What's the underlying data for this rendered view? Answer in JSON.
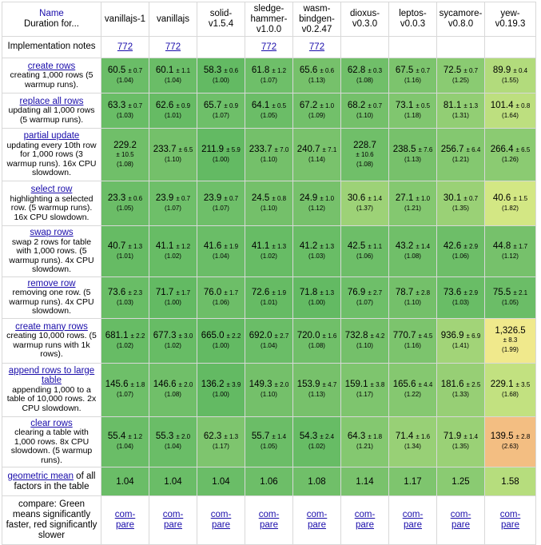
{
  "header": {
    "first_title": "Name",
    "first_sub": "Duration for...",
    "frameworks": [
      {
        "name": "vanillajs-1",
        "name2": ""
      },
      {
        "name": "vanillajs",
        "name2": ""
      },
      {
        "name": "solid-",
        "name2": "v1.5.4"
      },
      {
        "name": "sledge-",
        "name2": "hammer-\nv1.0.0"
      },
      {
        "name": "wasm-",
        "name2": "bindgen-\nv0.2.47"
      },
      {
        "name": "dioxus-",
        "name2": "v0.3.0"
      },
      {
        "name": "leptos-",
        "name2": "v0.0.3"
      },
      {
        "name": "sycamore-",
        "name2": "v0.8.0"
      },
      {
        "name": "yew-",
        "name2": "v0.19.3"
      }
    ]
  },
  "notes": {
    "label": "Implementation notes",
    "links": [
      "772",
      "772",
      "",
      "772",
      "772",
      "",
      "",
      "",
      ""
    ]
  },
  "rows": [
    {
      "title": "create rows",
      "desc": "creating 1,000 rows (5 warmup runs).",
      "height": 44,
      "cells": [
        {
          "mean": "60.5",
          "dev": "± 0.7",
          "factor": "(1.04)",
          "color": "#6abd67"
        },
        {
          "mean": "60.1",
          "dev": "± 1.1",
          "factor": "(1.04)",
          "color": "#6abd67"
        },
        {
          "mean": "58.3",
          "dev": "± 0.6",
          "factor": "(1.00)",
          "color": "#63ba63"
        },
        {
          "mean": "61.8",
          "dev": "± 1.2",
          "factor": "(1.07)",
          "color": "#6ebf69"
        },
        {
          "mean": "65.6",
          "dev": "± 0.6",
          "factor": "(1.13)",
          "color": "#76c16b"
        },
        {
          "mean": "62.8",
          "dev": "± 0.3",
          "factor": "(1.08)",
          "color": "#70bf69"
        },
        {
          "mean": "67.5",
          "dev": "± 0.7",
          "factor": "(1.16)",
          "color": "#7cc46d"
        },
        {
          "mean": "72.5",
          "dev": "± 0.7",
          "factor": "(1.25)",
          "color": "#8acb72"
        },
        {
          "mean": "89.9",
          "dev": "± 0.4",
          "factor": "(1.55)",
          "color": "#b2db7c"
        }
      ]
    },
    {
      "title": "replace all rows",
      "desc": "updating all 1,000 rows (5 warmup runs).",
      "height": 44,
      "cells": [
        {
          "mean": "63.3",
          "dev": "± 0.7",
          "factor": "(1.03)",
          "color": "#69bd66"
        },
        {
          "mean": "62.6",
          "dev": "± 0.9",
          "factor": "(1.01)",
          "color": "#66bb64"
        },
        {
          "mean": "65.7",
          "dev": "± 0.9",
          "factor": "(1.07)",
          "color": "#6ebf69"
        },
        {
          "mean": "64.1",
          "dev": "± 0.5",
          "factor": "(1.05)",
          "color": "#6bbd67"
        },
        {
          "mean": "67.2",
          "dev": "± 1.0",
          "factor": "(1.09)",
          "color": "#72c06a"
        },
        {
          "mean": "68.2",
          "dev": "± 0.7",
          "factor": "(1.10)",
          "color": "#74c06a"
        },
        {
          "mean": "73.1",
          "dev": "± 0.5",
          "factor": "(1.18)",
          "color": "#80c66f"
        },
        {
          "mean": "81.1",
          "dev": "± 1.3",
          "factor": "(1.31)",
          "color": "#92ce74"
        },
        {
          "mean": "101.4",
          "dev": "± 0.8",
          "factor": "(1.64)",
          "color": "#bddf7f"
        }
      ]
    },
    {
      "title": "partial update",
      "desc": "updating every 10th row for 1,000 rows (3 warmup runs). 16x CPU slowdown.",
      "height": 66,
      "cells": [
        {
          "mean": "229.2",
          "dev": "± 10.5",
          "factor": "(1.08)",
          "color": "#70bf69",
          "wrap": true
        },
        {
          "mean": "233.7",
          "dev": "± 6.5",
          "factor": "(1.10)",
          "color": "#74c06a"
        },
        {
          "mean": "211.9",
          "dev": "± 5.9",
          "factor": "(1.00)",
          "color": "#63ba63"
        },
        {
          "mean": "233.7",
          "dev": "± 7.0",
          "factor": "(1.10)",
          "color": "#74c06a"
        },
        {
          "mean": "240.7",
          "dev": "± 7.1",
          "factor": "(1.14)",
          "color": "#79c26c"
        },
        {
          "mean": "228.7",
          "dev": "± 10.6",
          "factor": "(1.08)",
          "color": "#70bf69",
          "wrap": true
        },
        {
          "mean": "238.5",
          "dev": "± 7.6",
          "factor": "(1.13)",
          "color": "#77c16b"
        },
        {
          "mean": "256.7",
          "dev": "± 6.4",
          "factor": "(1.21)",
          "color": "#84c870"
        },
        {
          "mean": "266.4",
          "dev": "± 6.5",
          "factor": "(1.26)",
          "color": "#8bcb72"
        }
      ]
    },
    {
      "title": "select row",
      "desc": "highlighting a selected row. (5 warmup runs). 16x CPU slowdown.",
      "height": 56,
      "cells": [
        {
          "mean": "23.3",
          "dev": "± 0.6",
          "factor": "(1.05)",
          "color": "#6bbd67"
        },
        {
          "mean": "23.9",
          "dev": "± 0.7",
          "factor": "(1.07)",
          "color": "#6ebf69"
        },
        {
          "mean": "23.9",
          "dev": "± 0.7",
          "factor": "(1.07)",
          "color": "#6ebf69"
        },
        {
          "mean": "24.5",
          "dev": "± 0.8",
          "factor": "(1.10)",
          "color": "#74c06a"
        },
        {
          "mean": "24.9",
          "dev": "± 1.0",
          "factor": "(1.12)",
          "color": "#76c16b"
        },
        {
          "mean": "30.6",
          "dev": "± 1.4",
          "factor": "(1.37)",
          "color": "#9dd277"
        },
        {
          "mean": "27.1",
          "dev": "± 1.0",
          "factor": "(1.21)",
          "color": "#84c870"
        },
        {
          "mean": "30.1",
          "dev": "± 0.7",
          "factor": "(1.35)",
          "color": "#9ad176"
        },
        {
          "mean": "40.6",
          "dev": "± 1.5",
          "factor": "(1.82)",
          "color": "#d3e784"
        }
      ]
    },
    {
      "title": "swap rows",
      "desc": "swap 2 rows for table with 1,000 rows. (5 warmup runs). 4x CPU slowdown.",
      "height": 58,
      "cells": [
        {
          "mean": "40.7",
          "dev": "± 1.3",
          "factor": "(1.01)",
          "color": "#66bb64"
        },
        {
          "mean": "41.1",
          "dev": "± 1.2",
          "factor": "(1.02)",
          "color": "#67bc65"
        },
        {
          "mean": "41.6",
          "dev": "± 1.9",
          "factor": "(1.04)",
          "color": "#6abd67"
        },
        {
          "mean": "41.1",
          "dev": "± 1.3",
          "factor": "(1.02)",
          "color": "#67bc65"
        },
        {
          "mean": "41.2",
          "dev": "± 1.3",
          "factor": "(1.03)",
          "color": "#69bd66"
        },
        {
          "mean": "42.5",
          "dev": "± 1.1",
          "factor": "(1.06)",
          "color": "#6dbe68"
        },
        {
          "mean": "43.2",
          "dev": "± 1.4",
          "factor": "(1.08)",
          "color": "#70bf69"
        },
        {
          "mean": "42.6",
          "dev": "± 2.9",
          "factor": "(1.06)",
          "color": "#6dbe68"
        },
        {
          "mean": "44.8",
          "dev": "± 1.7",
          "factor": "(1.12)",
          "color": "#76c16b"
        }
      ]
    },
    {
      "title": "remove row",
      "desc": "removing one row. (5 warmup runs). 4x CPU slowdown.",
      "height": 44,
      "cells": [
        {
          "mean": "73.6",
          "dev": "± 2.3",
          "factor": "(1.03)",
          "color": "#69bd66"
        },
        {
          "mean": "71.7",
          "dev": "± 1.7",
          "factor": "(1.00)",
          "color": "#63ba63"
        },
        {
          "mean": "76.0",
          "dev": "± 1.7",
          "factor": "(1.06)",
          "color": "#6dbe68"
        },
        {
          "mean": "72.6",
          "dev": "± 1.9",
          "factor": "(1.01)",
          "color": "#66bb64"
        },
        {
          "mean": "71.8",
          "dev": "± 1.3",
          "factor": "(1.00)",
          "color": "#63ba63"
        },
        {
          "mean": "76.9",
          "dev": "± 2.7",
          "factor": "(1.07)",
          "color": "#6ebf69"
        },
        {
          "mean": "78.7",
          "dev": "± 2.8",
          "factor": "(1.10)",
          "color": "#74c06a"
        },
        {
          "mean": "73.6",
          "dev": "± 2.9",
          "factor": "(1.03)",
          "color": "#69bd66"
        },
        {
          "mean": "75.5",
          "dev": "± 2.1",
          "factor": "(1.05)",
          "color": "#6bbd67"
        }
      ]
    },
    {
      "title": "create many rows",
      "desc": "creating 10,000 rows. (5 warmup runs with 1k rows).",
      "height": 56,
      "cells": [
        {
          "mean": "681.1",
          "dev": "± 2.2",
          "factor": "(1.02)",
          "color": "#67bc65"
        },
        {
          "mean": "677.3",
          "dev": "± 3.0",
          "factor": "(1.02)",
          "color": "#67bc65"
        },
        {
          "mean": "665.0",
          "dev": "± 2.2",
          "factor": "(1.00)",
          "color": "#63ba63"
        },
        {
          "mean": "692.0",
          "dev": "± 2.7",
          "factor": "(1.04)",
          "color": "#6abd67"
        },
        {
          "mean": "720.0",
          "dev": "± 1.6",
          "factor": "(1.08)",
          "color": "#70bf69"
        },
        {
          "mean": "732.8",
          "dev": "± 4.2",
          "factor": "(1.10)",
          "color": "#74c06a"
        },
        {
          "mean": "770.7",
          "dev": "± 4.5",
          "factor": "(1.16)",
          "color": "#7cc46d"
        },
        {
          "mean": "936.9",
          "dev": "± 6.9",
          "factor": "(1.41)",
          "color": "#a2d478"
        },
        {
          "mean": "1,326.5",
          "dev": "± 8.3",
          "factor": "(1.99)",
          "color": "#f0e98c",
          "wrap": true
        }
      ]
    },
    {
      "title": "append rows to large table",
      "desc": "appending 1,000 to a table of 10,000 rows. 2x CPU slowdown.",
      "height": 67,
      "cells": [
        {
          "mean": "145.6",
          "dev": "± 1.8",
          "factor": "(1.07)",
          "color": "#6ebf69"
        },
        {
          "mean": "146.6",
          "dev": "± 2.0",
          "factor": "(1.08)",
          "color": "#70bf69"
        },
        {
          "mean": "136.2",
          "dev": "± 3.9",
          "factor": "(1.00)",
          "color": "#63ba63"
        },
        {
          "mean": "149.3",
          "dev": "± 2.0",
          "factor": "(1.10)",
          "color": "#74c06a"
        },
        {
          "mean": "153.9",
          "dev": "± 4.7",
          "factor": "(1.13)",
          "color": "#77c16b"
        },
        {
          "mean": "159.1",
          "dev": "± 3.8",
          "factor": "(1.17)",
          "color": "#7ec56e"
        },
        {
          "mean": "165.6",
          "dev": "± 4.4",
          "factor": "(1.22)",
          "color": "#85c870"
        },
        {
          "mean": "181.6",
          "dev": "± 2.5",
          "factor": "(1.33)",
          "color": "#97cf75"
        },
        {
          "mean": "229.1",
          "dev": "± 3.5",
          "factor": "(1.68)",
          "color": "#c2e180"
        }
      ]
    },
    {
      "title": "clear rows",
      "desc": "clearing a table with 1,000 rows. 8x CPU slowdown. (5 warmup runs).",
      "height": 58,
      "cells": [
        {
          "mean": "55.4",
          "dev": "± 1.2",
          "factor": "(1.04)",
          "color": "#6abd67"
        },
        {
          "mean": "55.3",
          "dev": "± 2.0",
          "factor": "(1.04)",
          "color": "#6abd67"
        },
        {
          "mean": "62.3",
          "dev": "± 1.3",
          "factor": "(1.17)",
          "color": "#7ec56e"
        },
        {
          "mean": "55.7",
          "dev": "± 1.4",
          "factor": "(1.05)",
          "color": "#6bbd67"
        },
        {
          "mean": "54.3",
          "dev": "± 2.4",
          "factor": "(1.02)",
          "color": "#67bc65"
        },
        {
          "mean": "64.3",
          "dev": "± 1.8",
          "factor": "(1.21)",
          "color": "#84c870"
        },
        {
          "mean": "71.4",
          "dev": "± 1.6",
          "factor": "(1.34)",
          "color": "#98d076"
        },
        {
          "mean": "71.9",
          "dev": "± 1.4",
          "factor": "(1.35)",
          "color": "#9ad176"
        },
        {
          "mean": "139.5",
          "dev": "± 2.8",
          "factor": "(2.63)",
          "color": "#f3be82"
        }
      ]
    }
  ],
  "geomean": {
    "label_link": "geometric mean",
    "label_rest": " of all factors in the table",
    "values": [
      {
        "v": "1.04",
        "color": "#6abd67"
      },
      {
        "v": "1.04",
        "color": "#6abd67"
      },
      {
        "v": "1.04",
        "color": "#6abd67"
      },
      {
        "v": "1.06",
        "color": "#6dbe68"
      },
      {
        "v": "1.08",
        "color": "#70bf69"
      },
      {
        "v": "1.14",
        "color": "#79c26c"
      },
      {
        "v": "1.17",
        "color": "#7ec56e"
      },
      {
        "v": "1.25",
        "color": "#8acb72"
      },
      {
        "v": "1.58",
        "color": "#b6dd7d"
      }
    ]
  },
  "compare": {
    "label": "compare: Green means significantly faster, red significantly slower",
    "link1": "com-",
    "link2": "pare"
  }
}
